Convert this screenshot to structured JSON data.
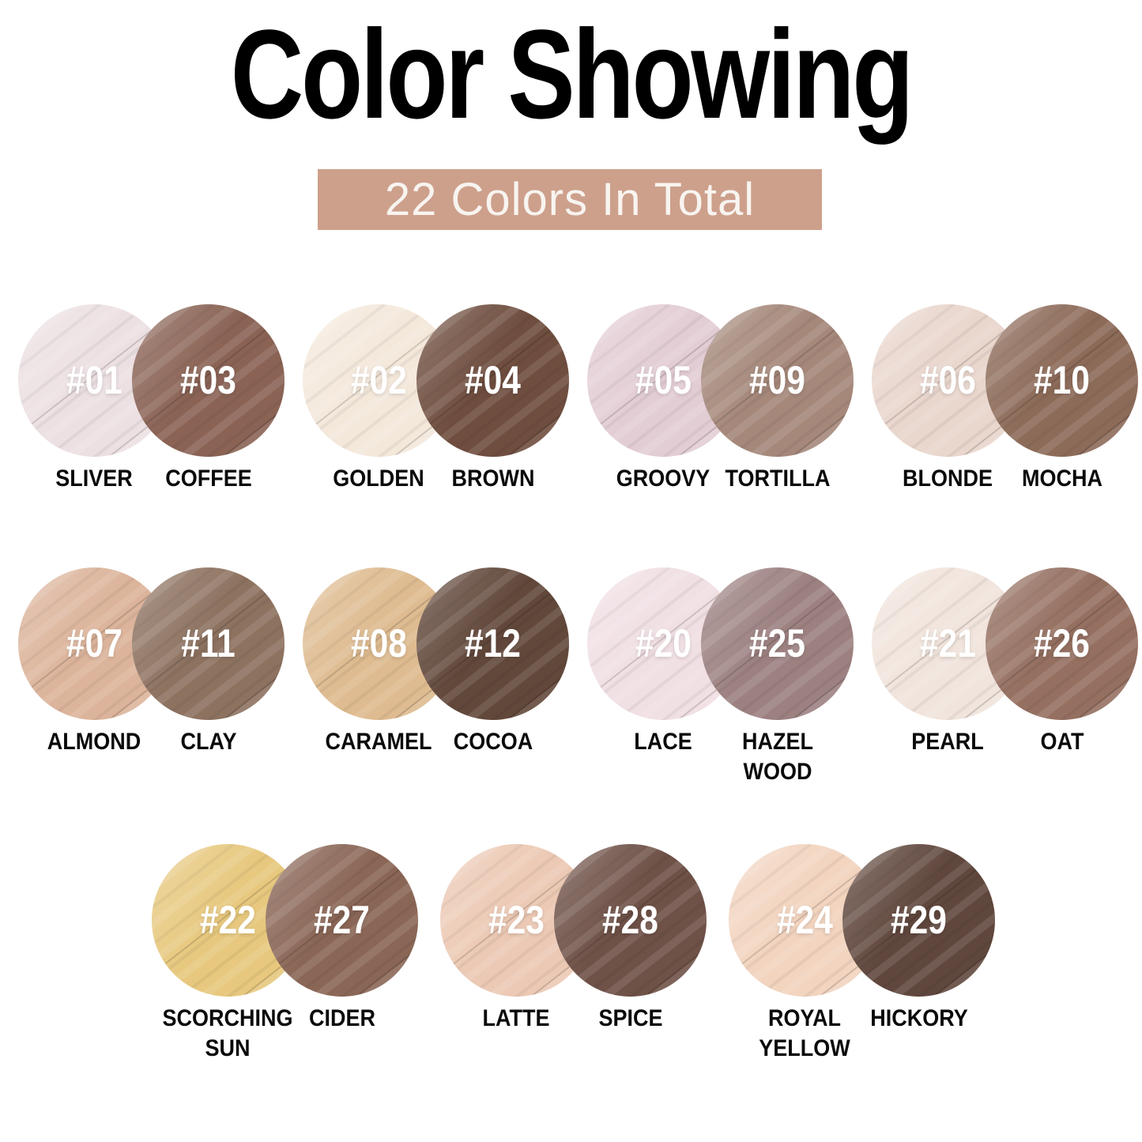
{
  "header": {
    "title": "Color Showing",
    "banner_text": "22 Colors In Total",
    "banner_bg": "#cda08c",
    "banner_text_color": "#f8f4f0"
  },
  "rows": [
    {
      "pairs": [
        {
          "light": {
            "number": "#01",
            "name": "SLIVER",
            "color": "#ece0e2"
          },
          "dark": {
            "number": "#03",
            "name": "COFFEE",
            "color": "#8a6355"
          }
        },
        {
          "light": {
            "number": "#02",
            "name": "GOLDEN",
            "color": "#f4e8db"
          },
          "dark": {
            "number": "#04",
            "name": "BROWN",
            "color": "#6f4e3f"
          }
        },
        {
          "light": {
            "number": "#05",
            "name": "GROOVY",
            "color": "#e3cdd5"
          },
          "dark": {
            "number": "#09",
            "name": "TORTILLA",
            "color": "#a5887a"
          }
        },
        {
          "light": {
            "number": "#06",
            "name": "BLONDE",
            "color": "#e9d6cd"
          },
          "dark": {
            "number": "#10",
            "name": "MOCHA",
            "color": "#8d6b59"
          }
        }
      ]
    },
    {
      "pairs": [
        {
          "light": {
            "number": "#07",
            "name": "ALMOND",
            "color": "#dcb49b"
          },
          "dark": {
            "number": "#11",
            "name": "CLAY",
            "color": "#8d7260"
          }
        },
        {
          "light": {
            "number": "#08",
            "name": "CARAMEL",
            "color": "#debb90"
          },
          "dark": {
            "number": "#12",
            "name": "COCOA",
            "color": "#62483b"
          }
        },
        {
          "light": {
            "number": "#20",
            "name": "LACE",
            "color": "#f0dfe3"
          },
          "dark": {
            "number": "#25",
            "name": "HAZEL\nWOOD",
            "color": "#9d8181"
          }
        },
        {
          "light": {
            "number": "#21",
            "name": "PEARL",
            "color": "#f1e4dc"
          },
          "dark": {
            "number": "#26",
            "name": "OAT",
            "color": "#957061"
          }
        }
      ]
    },
    {
      "pairs": [
        {
          "light": {
            "number": "#22",
            "name": "SCORCHING\nSUN",
            "color": "#e7c87e"
          },
          "dark": {
            "number": "#27",
            "name": "CIDER",
            "color": "#8a6656"
          }
        },
        {
          "light": {
            "number": "#23",
            "name": "LATTE",
            "color": "#ecc9b4"
          },
          "dark": {
            "number": "#28",
            "name": "SPICE",
            "color": "#6e5147"
          }
        },
        {
          "light": {
            "number": "#24",
            "name": "ROYAL\nYELLOW",
            "color": "#f2d4bf"
          },
          "dark": {
            "number": "#29",
            "name": "HICKORY",
            "color": "#60473d"
          }
        }
      ]
    }
  ]
}
